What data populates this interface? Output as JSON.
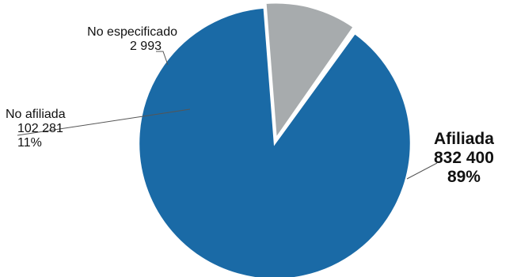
{
  "chart_data": {
    "type": "pie",
    "slices": [
      {
        "label": "Afiliada",
        "value": 832400,
        "value_text": "832 400",
        "percent_text": "89%",
        "color": "#1a6aa6"
      },
      {
        "label": "No afiliada",
        "value": 102281,
        "value_text": "102 281",
        "percent_text": "11%",
        "color": "#a7abad"
      },
      {
        "label": "No especificado",
        "value": 2993,
        "value_text": "2 993",
        "percent_text": "",
        "color": "#ffffff"
      }
    ],
    "exploded_slices": [
      "No afiliada",
      "No especificado"
    ]
  }
}
